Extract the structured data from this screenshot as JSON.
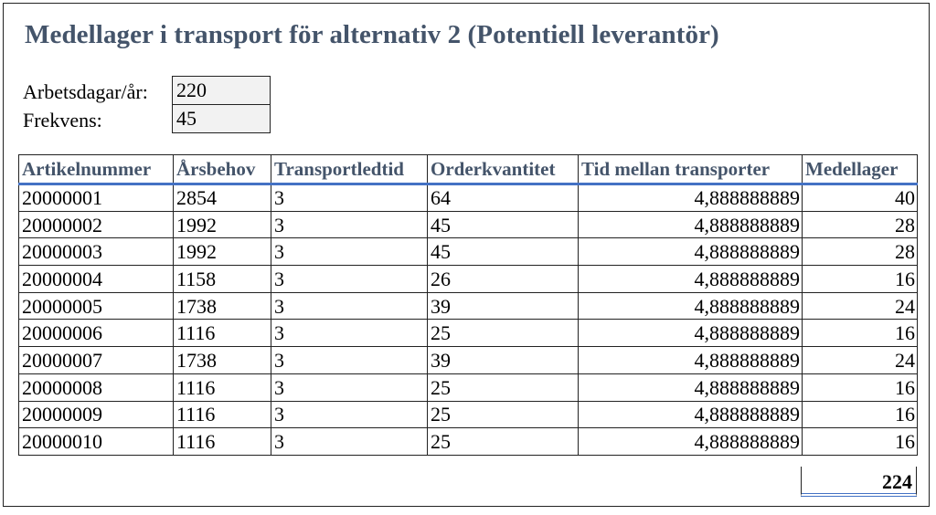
{
  "title": "Medellager i transport för alternativ 2 (Potentiell leverantör)",
  "params": [
    {
      "label": "Arbetsdagar/år:",
      "value": "220"
    },
    {
      "label": "Frekvens:",
      "value": "45"
    }
  ],
  "table": {
    "headers": [
      "Artikelnummer",
      "Årsbehov",
      "Transportledtid",
      "Orderkvantitet",
      "Tid mellan transporter",
      "Medellager"
    ],
    "rows": [
      [
        "20000001",
        "2854",
        "3",
        "64",
        "4,888888889",
        "40"
      ],
      [
        "20000002",
        "1992",
        "3",
        "45",
        "4,888888889",
        "28"
      ],
      [
        "20000003",
        "1992",
        "3",
        "45",
        "4,888888889",
        "28"
      ],
      [
        "20000004",
        "1158",
        "3",
        "26",
        "4,888888889",
        "16"
      ],
      [
        "20000005",
        "1738",
        "3",
        "39",
        "4,888888889",
        "24"
      ],
      [
        "20000006",
        "1116",
        "3",
        "25",
        "4,888888889",
        "16"
      ],
      [
        "20000007",
        "1738",
        "3",
        "39",
        "4,888888889",
        "24"
      ],
      [
        "20000008",
        "1116",
        "3",
        "25",
        "4,888888889",
        "16"
      ],
      [
        "20000009",
        "1116",
        "3",
        "25",
        "4,888888889",
        "16"
      ],
      [
        "20000010",
        "1116",
        "3",
        "25",
        "4,888888889",
        "16"
      ]
    ],
    "total": "224"
  },
  "colors": {
    "header_text": "#44546a",
    "accent_border": "#4472c4",
    "param_fill": "#f2f2f2"
  }
}
